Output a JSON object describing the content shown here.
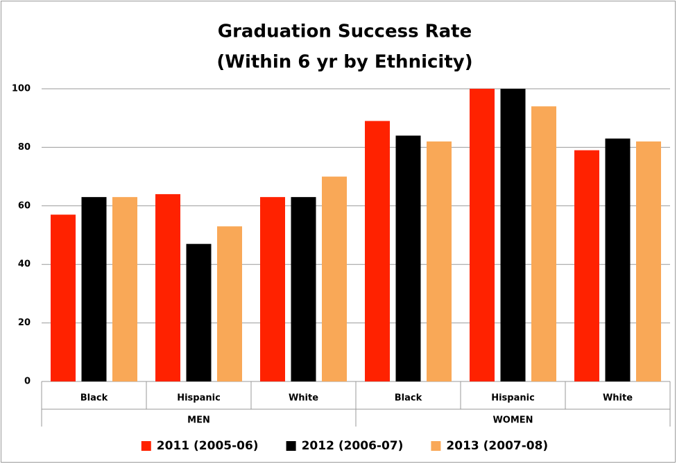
{
  "chart_data": {
    "type": "bar",
    "title": [
      "Graduation Success Rate",
      "(Within 6 yr by Ethnicity)"
    ],
    "category_groups": [
      {
        "name": "MEN",
        "categories": [
          "Black",
          "Hispanic",
          "White"
        ]
      },
      {
        "name": "WOMEN",
        "categories": [
          "Black",
          "Hispanic",
          "White"
        ]
      }
    ],
    "series": [
      {
        "name": "2011 (2005-06)",
        "color": "#ff2200",
        "values": [
          57,
          64,
          63,
          89,
          100,
          79
        ]
      },
      {
        "name": "2012 (2006-07)",
        "color": "#000000",
        "values": [
          63,
          47,
          63,
          84,
          100,
          83
        ]
      },
      {
        "name": "2013 (2007-08)",
        "color": "#f9a857",
        "values": [
          63,
          53,
          70,
          82,
          94,
          82
        ]
      }
    ],
    "ylim": [
      0,
      100
    ],
    "yticks": [
      0,
      20,
      40,
      60,
      80,
      100
    ],
    "grid": true,
    "legend": "bottom"
  }
}
